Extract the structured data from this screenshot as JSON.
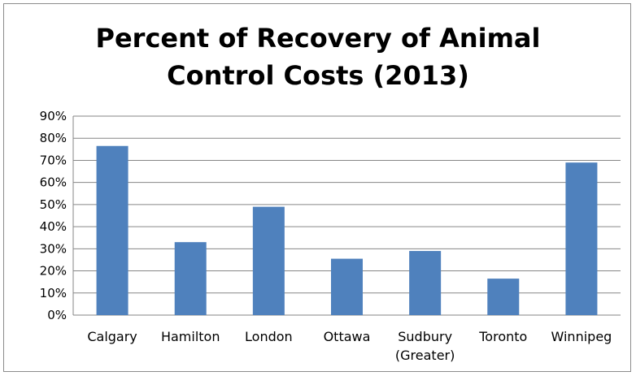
{
  "chart_data": {
    "type": "bar",
    "title_lines": [
      "Percent of Recovery of Animal",
      "Control Costs (2013)"
    ],
    "title": "Percent of Recovery of Animal Control Costs (2013)",
    "xlabel": "",
    "ylabel": "",
    "categories": [
      [
        "Calgary"
      ],
      [
        "Hamilton"
      ],
      [
        "London"
      ],
      [
        "Ottawa"
      ],
      [
        "Sudbury",
        "(Greater)"
      ],
      [
        "Toronto"
      ],
      [
        "Winnipeg"
      ]
    ],
    "values": [
      76.5,
      33,
      49,
      25.5,
      29,
      16.5,
      69
    ],
    "ylim": [
      0,
      90
    ],
    "y_ticks": [
      "0%",
      "10%",
      "20%",
      "30%",
      "40%",
      "50%",
      "60%",
      "70%",
      "80%",
      "90%"
    ],
    "grid": true,
    "legend": "none",
    "bar_color": "#4f81bd",
    "grid_color": "#868686"
  }
}
